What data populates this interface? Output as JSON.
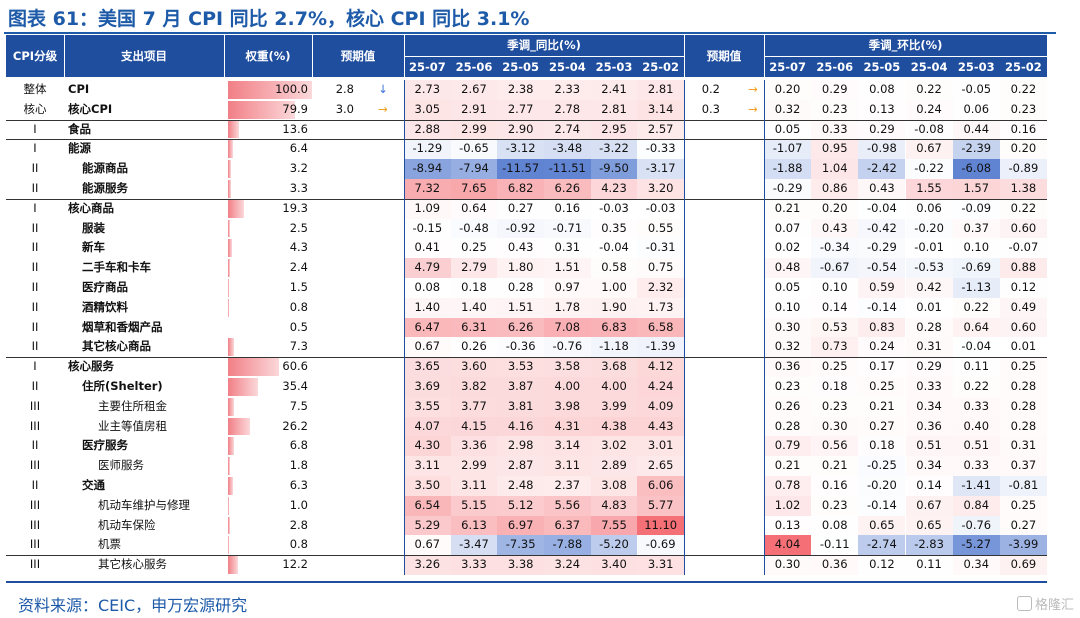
{
  "title": "图表 61：美国 7 月 CPI 同比 2.7%，核心 CPI 同比 3.1%",
  "header": {
    "col_level": "CPI分级",
    "col_item": "支出项目",
    "col_weight": "权重(%)",
    "col_expect_yoy": "预期值",
    "group_yoy": "季调_同比(%)",
    "col_expect_mom": "预期值",
    "group_mom": "季调_环比(%)",
    "months": [
      "25-07",
      "25-06",
      "25-05",
      "25-04",
      "25-03",
      "25-02"
    ]
  },
  "rows": [
    {
      "level": "整体",
      "item": "CPI",
      "weight": "100.0",
      "w": 100.0,
      "exp_yoy": "2.8",
      "exp_yoy_arrow": "↓",
      "exp_yoy_dir": "down",
      "yoy": [
        "2.73",
        "2.67",
        "2.38",
        "2.33",
        "2.41",
        "2.81"
      ],
      "exp_mom": "0.2",
      "exp_mom_arrow": "→",
      "exp_mom_dir": "right",
      "mom": [
        "0.20",
        "0.29",
        "0.08",
        "0.22",
        "-0.05",
        "0.22"
      ]
    },
    {
      "level": "核心",
      "item": "核心CPI",
      "weight": "79.9",
      "w": 79.9,
      "exp_yoy": "3.0",
      "exp_yoy_arrow": "→",
      "exp_yoy_dir": "right",
      "yoy": [
        "3.05",
        "2.91",
        "2.77",
        "2.78",
        "2.81",
        "3.14"
      ],
      "exp_mom": "0.3",
      "exp_mom_arrow": "→",
      "exp_mom_dir": "right",
      "mom": [
        "0.32",
        "0.23",
        "0.13",
        "0.24",
        "0.06",
        "0.23"
      ]
    },
    {
      "level": "I",
      "item": "食品",
      "weight": "13.6",
      "w": 13.6,
      "yoy": [
        "2.88",
        "2.99",
        "2.90",
        "2.74",
        "2.95",
        "2.57"
      ],
      "mom": [
        "0.05",
        "0.33",
        "0.29",
        "-0.08",
        "0.44",
        "0.16"
      ]
    },
    {
      "level": "I",
      "item": "能源",
      "weight": "6.4",
      "w": 6.4,
      "yoy": [
        "-1.29",
        "-0.65",
        "-3.12",
        "-3.48",
        "-3.22",
        "-0.33"
      ],
      "mom": [
        "-1.07",
        "0.95",
        "-0.98",
        "0.67",
        "-2.39",
        "0.20"
      ]
    },
    {
      "level": "II",
      "item": "能源商品",
      "weight": "3.2",
      "w": 3.2,
      "yoy": [
        "-8.94",
        "-7.94",
        "-11.57",
        "-11.51",
        "-9.50",
        "-3.17"
      ],
      "mom": [
        "-1.88",
        "1.04",
        "-2.42",
        "-0.22",
        "-6.08",
        "-0.89"
      ]
    },
    {
      "level": "II",
      "item": "能源服务",
      "weight": "3.3",
      "w": 3.3,
      "yoy": [
        "7.32",
        "7.65",
        "6.82",
        "6.26",
        "4.23",
        "3.20"
      ],
      "mom": [
        "-0.29",
        "0.86",
        "0.43",
        "1.55",
        "1.57",
        "1.38"
      ]
    },
    {
      "level": "I",
      "item": "核心商品",
      "weight": "19.3",
      "w": 19.3,
      "yoy": [
        "1.09",
        "0.64",
        "0.27",
        "0.16",
        "-0.03",
        "-0.03"
      ],
      "mom": [
        "0.21",
        "0.20",
        "-0.04",
        "0.06",
        "-0.09",
        "0.22"
      ]
    },
    {
      "level": "II",
      "item": "服装",
      "weight": "2.5",
      "w": 2.5,
      "yoy": [
        "-0.15",
        "-0.48",
        "-0.92",
        "-0.71",
        "0.35",
        "0.55"
      ],
      "mom": [
        "0.07",
        "0.43",
        "-0.42",
        "-0.20",
        "0.37",
        "0.60"
      ]
    },
    {
      "level": "II",
      "item": "新车",
      "weight": "4.3",
      "w": 4.3,
      "yoy": [
        "0.41",
        "0.25",
        "0.43",
        "0.31",
        "-0.04",
        "-0.31"
      ],
      "mom": [
        "0.02",
        "-0.34",
        "-0.29",
        "-0.01",
        "0.10",
        "-0.07"
      ]
    },
    {
      "level": "II",
      "item": "二手车和卡车",
      "weight": "2.4",
      "w": 2.4,
      "yoy": [
        "4.79",
        "2.79",
        "1.80",
        "1.51",
        "0.58",
        "0.75"
      ],
      "mom": [
        "0.48",
        "-0.67",
        "-0.54",
        "-0.53",
        "-0.69",
        "0.88"
      ]
    },
    {
      "level": "II",
      "item": "医疗商品",
      "weight": "1.5",
      "w": 1.5,
      "yoy": [
        "0.08",
        "0.18",
        "0.28",
        "0.97",
        "1.00",
        "2.32"
      ],
      "mom": [
        "0.05",
        "0.10",
        "0.59",
        "0.42",
        "-1.13",
        "0.12"
      ]
    },
    {
      "level": "II",
      "item": "酒精饮料",
      "weight": "0.8",
      "w": 0.8,
      "yoy": [
        "1.40",
        "1.40",
        "1.51",
        "1.78",
        "1.90",
        "1.73"
      ],
      "mom": [
        "0.10",
        "0.14",
        "-0.14",
        "0.01",
        "0.22",
        "0.49"
      ]
    },
    {
      "level": "II",
      "item": "烟草和香烟产品",
      "weight": "0.5",
      "w": 0.5,
      "yoy": [
        "6.47",
        "6.31",
        "6.26",
        "7.08",
        "6.83",
        "6.58"
      ],
      "mom": [
        "0.30",
        "0.53",
        "0.83",
        "0.28",
        "0.64",
        "0.60"
      ]
    },
    {
      "level": "II",
      "item": "其它核心商品",
      "weight": "7.3",
      "w": 7.3,
      "yoy": [
        "0.67",
        "0.26",
        "-0.36",
        "-0.76",
        "-1.18",
        "-1.39"
      ],
      "mom": [
        "0.32",
        "0.73",
        "0.24",
        "0.31",
        "-0.04",
        "0.01"
      ]
    },
    {
      "level": "I",
      "item": "核心服务",
      "weight": "60.6",
      "w": 60.6,
      "yoy": [
        "3.65",
        "3.60",
        "3.53",
        "3.58",
        "3.68",
        "4.12"
      ],
      "mom": [
        "0.36",
        "0.25",
        "0.17",
        "0.29",
        "0.11",
        "0.25"
      ]
    },
    {
      "level": "II",
      "item": "住所(Shelter)",
      "weight": "35.4",
      "w": 35.4,
      "yoy": [
        "3.69",
        "3.82",
        "3.87",
        "4.00",
        "4.00",
        "4.24"
      ],
      "mom": [
        "0.23",
        "0.18",
        "0.25",
        "0.33",
        "0.22",
        "0.28"
      ]
    },
    {
      "level": "III",
      "item": "主要住所租金",
      "weight": "7.5",
      "w": 7.5,
      "yoy": [
        "3.55",
        "3.77",
        "3.81",
        "3.98",
        "3.99",
        "4.09"
      ],
      "mom": [
        "0.26",
        "0.23",
        "0.21",
        "0.34",
        "0.33",
        "0.28"
      ]
    },
    {
      "level": "III",
      "item": "业主等值房租",
      "weight": "26.2",
      "w": 26.2,
      "yoy": [
        "4.07",
        "4.15",
        "4.16",
        "4.31",
        "4.38",
        "4.43"
      ],
      "mom": [
        "0.28",
        "0.30",
        "0.27",
        "0.36",
        "0.40",
        "0.28"
      ]
    },
    {
      "level": "II",
      "item": "医疗服务",
      "weight": "6.8",
      "w": 6.8,
      "yoy": [
        "4.30",
        "3.36",
        "2.98",
        "3.14",
        "3.02",
        "3.01"
      ],
      "mom": [
        "0.79",
        "0.56",
        "0.18",
        "0.51",
        "0.51",
        "0.31"
      ]
    },
    {
      "level": "III",
      "item": "医师服务",
      "weight": "1.8",
      "w": 1.8,
      "yoy": [
        "3.11",
        "2.99",
        "2.87",
        "3.11",
        "2.89",
        "2.65"
      ],
      "mom": [
        "0.21",
        "0.21",
        "-0.25",
        "0.34",
        "0.33",
        "0.37"
      ]
    },
    {
      "level": "II",
      "item": "交通",
      "weight": "6.3",
      "w": 6.3,
      "yoy": [
        "3.50",
        "3.11",
        "2.48",
        "2.37",
        "3.08",
        "6.06"
      ],
      "mom": [
        "0.78",
        "0.16",
        "-0.20",
        "0.14",
        "-1.41",
        "-0.81"
      ]
    },
    {
      "level": "III",
      "item": "机动车维护与修理",
      "weight": "1.0",
      "w": 1.0,
      "yoy": [
        "6.54",
        "5.15",
        "5.12",
        "5.56",
        "4.83",
        "5.77"
      ],
      "mom": [
        "1.02",
        "0.23",
        "-0.14",
        "0.67",
        "0.84",
        "0.25"
      ]
    },
    {
      "level": "III",
      "item": "机动车保险",
      "weight": "2.8",
      "w": 2.8,
      "yoy": [
        "5.29",
        "6.13",
        "6.97",
        "6.37",
        "7.55",
        "11.10"
      ],
      "mom": [
        "0.13",
        "0.08",
        "0.65",
        "0.65",
        "-0.76",
        "0.27"
      ]
    },
    {
      "level": "III",
      "item": "机票",
      "weight": "0.8",
      "w": 0.8,
      "yoy": [
        "0.67",
        "-3.47",
        "-7.35",
        "-7.88",
        "-5.20",
        "-0.69"
      ],
      "mom": [
        "4.04",
        "-0.11",
        "-2.74",
        "-2.83",
        "-5.27",
        "-3.99"
      ]
    },
    {
      "level": "III",
      "item": "其它核心服务",
      "weight": "12.2",
      "w": 12.2,
      "yoy": [
        "3.26",
        "3.33",
        "3.38",
        "3.24",
        "3.40",
        "3.31"
      ],
      "mom": [
        "0.30",
        "0.36",
        "0.12",
        "0.11",
        "0.34",
        "0.69"
      ]
    }
  ],
  "footer": "资料来源：CEIC，申万宏源研究",
  "watermark": "格隆汇",
  "colors": {
    "header_bg": "#1f4e9f",
    "title": "#1d5aa8",
    "bar": "#f17f86"
  }
}
